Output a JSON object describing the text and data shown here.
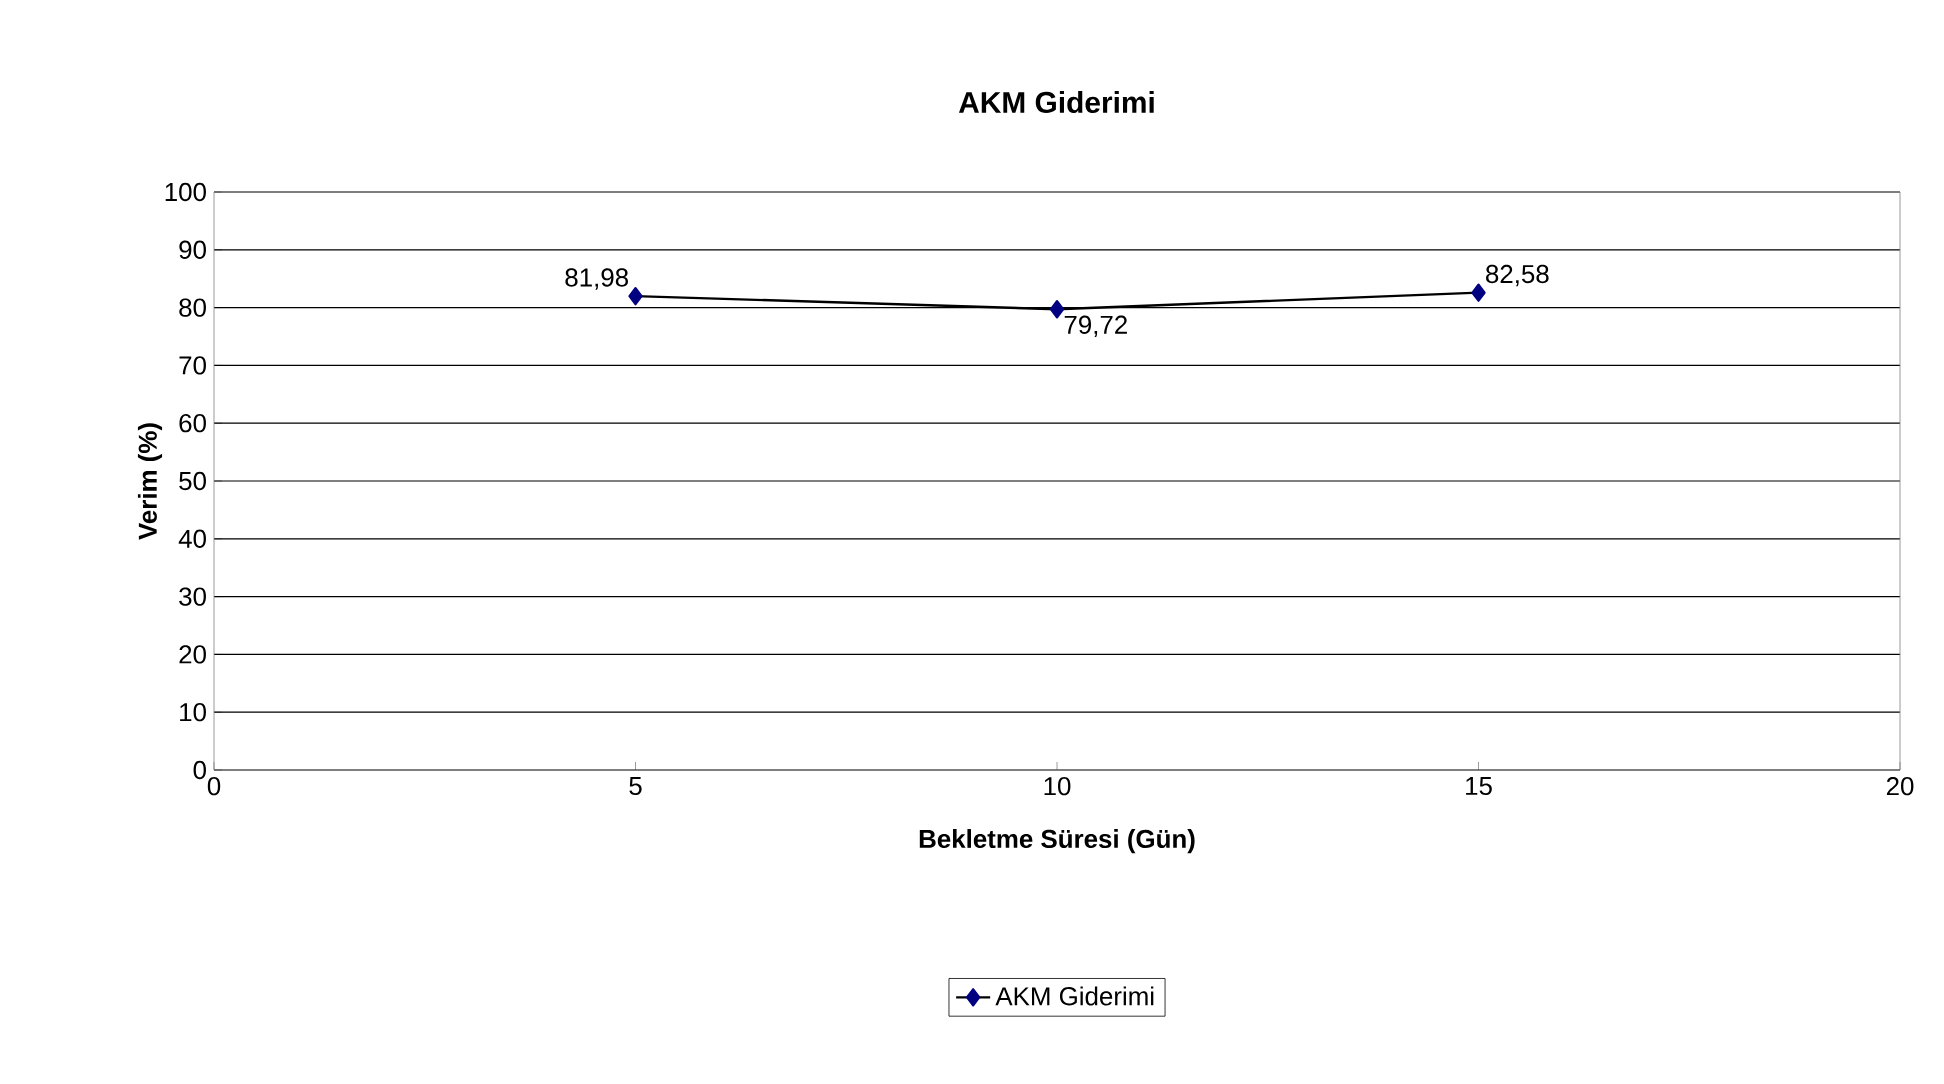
{
  "chart_data": {
    "type": "line",
    "title": "AKM Giderimi",
    "xlabel": "Bekletme Süresi (Gün)",
    "ylabel": "Verim (%)",
    "x": [
      5,
      10,
      15
    ],
    "series": [
      {
        "name": "AKM Giderimi",
        "color": "#000080",
        "values": [
          81.98,
          79.72,
          82.58
        ],
        "value_labels": [
          "81,98",
          "79,72",
          "82,58"
        ]
      }
    ],
    "xlim": [
      0,
      20
    ],
    "xticks": [
      0,
      5,
      10,
      15,
      20
    ],
    "ylim": [
      0,
      100
    ],
    "yticks": [
      0,
      10,
      20,
      30,
      40,
      50,
      60,
      70,
      80,
      90,
      100
    ],
    "grid": "y",
    "legend": "bottom",
    "marker": "diamond",
    "line_style": "solid"
  }
}
